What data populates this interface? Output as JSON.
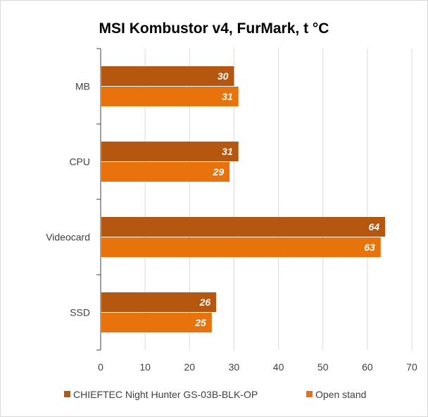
{
  "chart_data": {
    "type": "bar",
    "orientation": "horizontal",
    "title": "MSI Kombustor v4, FurMark, t °C",
    "xlabel": "",
    "ylabel": "",
    "categories": [
      "MB",
      "CPU",
      "Videocard",
      "SSD"
    ],
    "series": [
      {
        "name": "CHIEFTEC Night Hunter GS-03B-BLK-OP",
        "color": "#b5570f",
        "values": [
          30,
          31,
          64,
          26
        ]
      },
      {
        "name": "Open stand",
        "color": "#e8720c",
        "values": [
          31,
          29,
          63,
          25
        ]
      }
    ],
    "xlim": [
      0,
      70
    ],
    "xticks": [
      0,
      10,
      20,
      30,
      40,
      50,
      60,
      70
    ],
    "grid": "vertical",
    "legend": "bottom",
    "data_labels": true
  }
}
